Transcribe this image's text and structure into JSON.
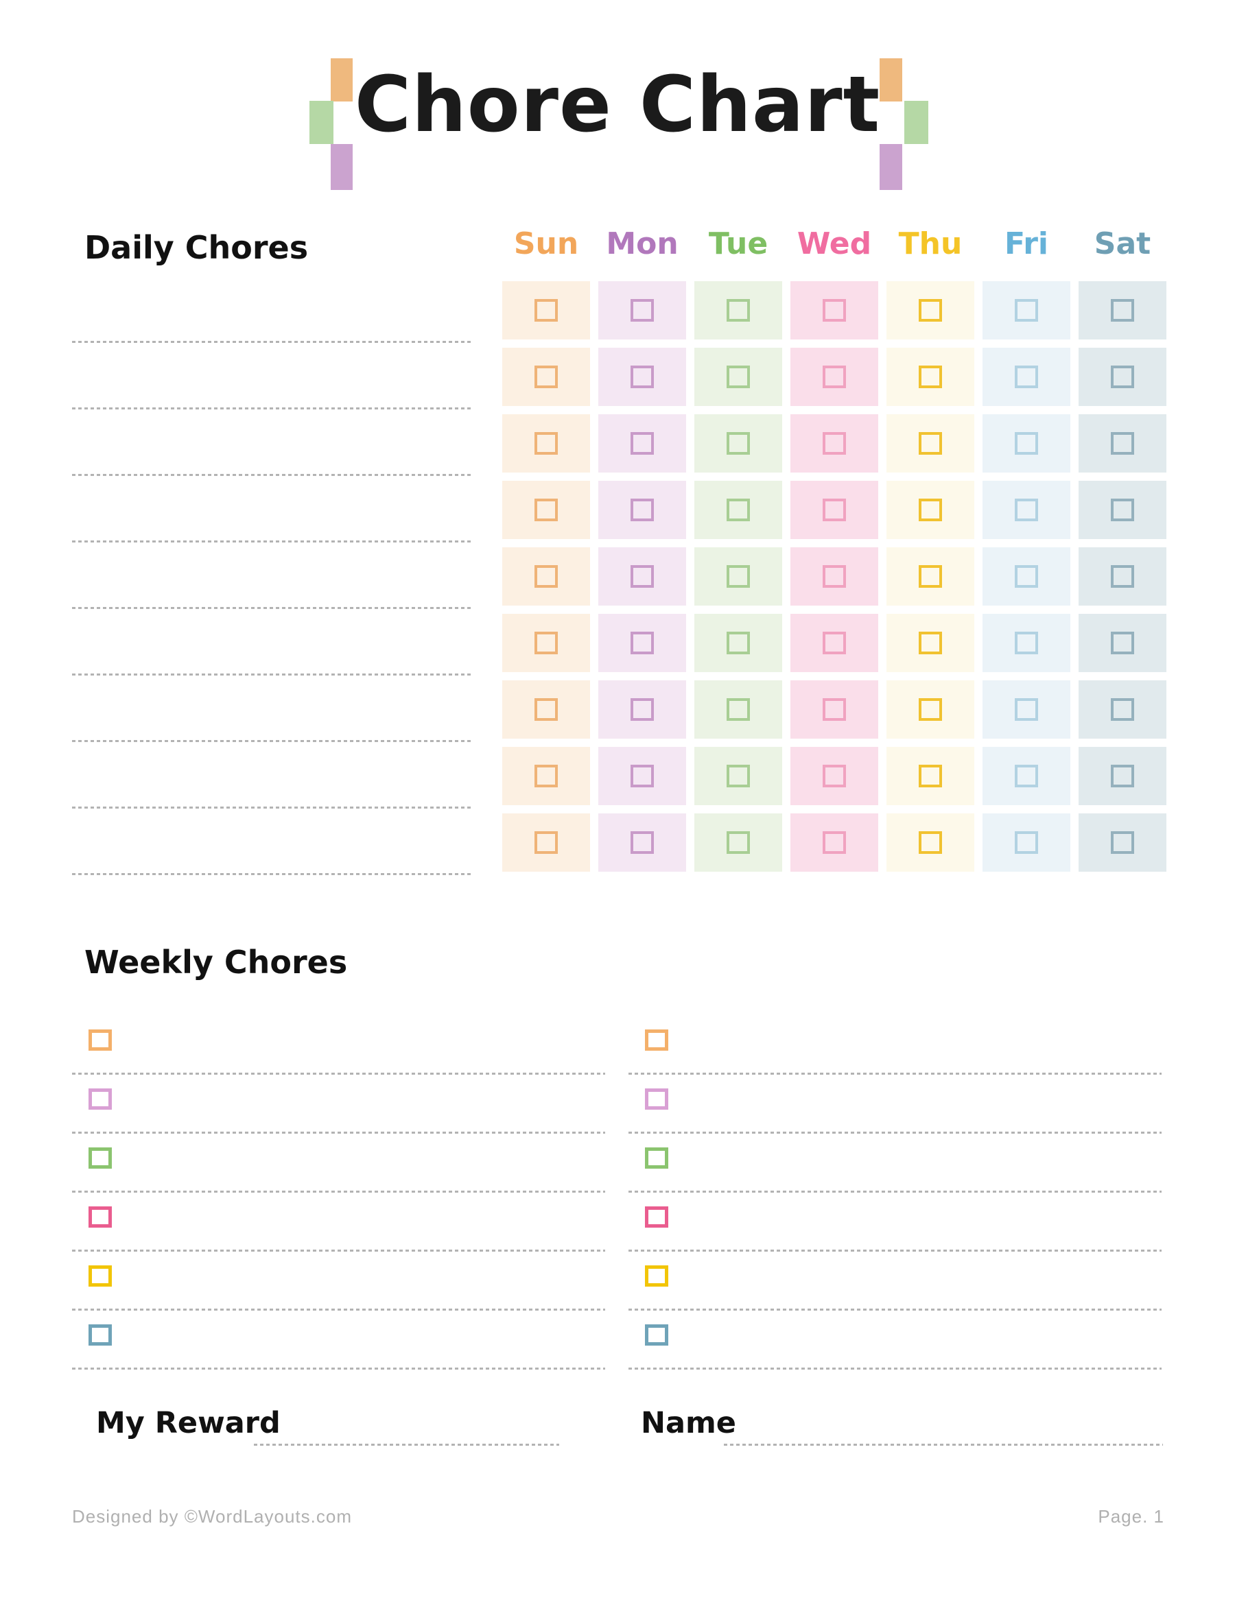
{
  "title": "Chore Chart",
  "decor": {
    "orange": "#EFB97E",
    "green": "#B5D8A5",
    "purple": "#CBA3CF"
  },
  "daily": {
    "heading": "Daily Chores",
    "rows": 9,
    "days": [
      {
        "label": "Sun",
        "label_color": "#F2A65A",
        "cell_bg": "#FCF0E2",
        "box_border": "#EFB377"
      },
      {
        "label": "Mon",
        "label_color": "#B178BC",
        "cell_bg": "#F4E7F3",
        "box_border": "#C99BC9"
      },
      {
        "label": "Tue",
        "label_color": "#7FBF63",
        "cell_bg": "#EBF3E4",
        "box_border": "#A8CE94"
      },
      {
        "label": "Wed",
        "label_color": "#F06DA0",
        "cell_bg": "#FADEEA",
        "box_border": "#F0A2C0"
      },
      {
        "label": "Thu",
        "label_color": "#F4C427",
        "cell_bg": "#FDF9EA",
        "box_border": "#F1C230"
      },
      {
        "label": "Fri",
        "label_color": "#66B2D8",
        "cell_bg": "#EBF3F8",
        "box_border": "#B2D2E2"
      },
      {
        "label": "Sat",
        "label_color": "#6F9FB4",
        "cell_bg": "#E1EAED",
        "box_border": "#95B1BD"
      }
    ]
  },
  "weekly": {
    "heading": "Weekly Chores",
    "columns": 2,
    "rows_per_column": 6,
    "checkbox_colors": [
      "#F4B06A",
      "#D9A0D4",
      "#8BC46F",
      "#EA5D8F",
      "#F2C508",
      "#6FA3B8"
    ]
  },
  "fields": {
    "reward_label": "My Reward",
    "name_label": "Name"
  },
  "footer": {
    "credit": "Designed by ©WordLayouts.com",
    "page": "Page. 1"
  },
  "line_color": "#b3b3b3"
}
